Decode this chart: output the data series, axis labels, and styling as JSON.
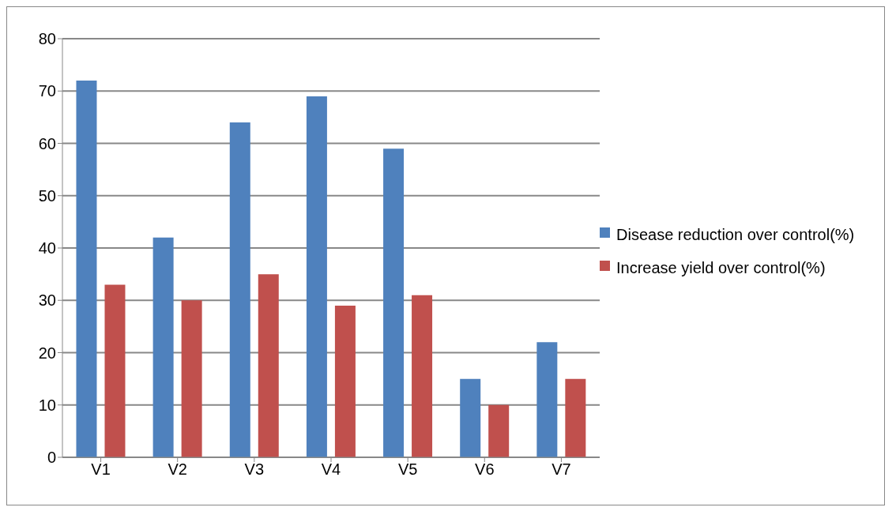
{
  "chart_data": {
    "type": "bar",
    "categories": [
      "V1",
      "V2",
      "V3",
      "V4",
      "V5",
      "V6",
      "V7"
    ],
    "series": [
      {
        "name": "Disease reduction over control(%)",
        "color": "#4f81bd",
        "values": [
          72,
          42,
          64,
          69,
          59,
          15,
          22
        ]
      },
      {
        "name": "Increase yield over control(%)",
        "color": "#c0504d",
        "values": [
          33,
          30,
          35,
          29,
          31,
          10,
          15
        ]
      }
    ],
    "ylim": [
      0,
      80
    ],
    "yticks": [
      0,
      10,
      20,
      30,
      40,
      50,
      60,
      70,
      80
    ],
    "grid": "y",
    "legend": "right"
  }
}
